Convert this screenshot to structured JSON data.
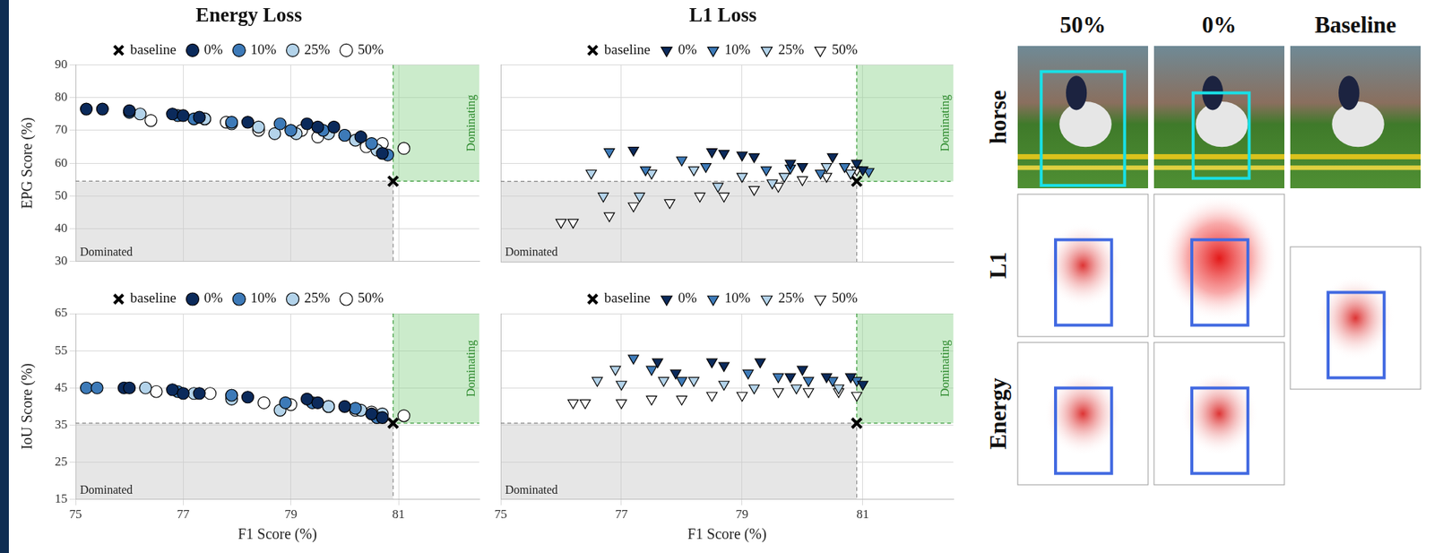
{
  "chart_data": [
    {
      "type": "scatter",
      "title": "Energy Loss",
      "y_label": "EPG Score (%)",
      "xlim": [
        75,
        82.5
      ],
      "ylim": [
        30,
        90
      ],
      "xticks": [
        75,
        77,
        79,
        81
      ],
      "yticks": [
        30,
        40,
        50,
        60,
        70,
        80,
        90
      ],
      "grid": true,
      "legend": "top",
      "tick_labels": "y",
      "annotations": {
        "below_left": "Dominated",
        "above_right": "Dominating"
      },
      "series": [
        {
          "name": "baseline",
          "color": "#ffffff",
          "marker": "x",
          "x": [
            80.9
          ],
          "values": [
            54.5
          ]
        },
        {
          "name": "0%",
          "color": "#0b2a5b",
          "marker": "circle",
          "x": [
            75.2,
            75.5,
            76.0,
            76.8,
            77.0,
            77.3,
            78.2,
            79.3,
            79.5,
            79.8,
            80.3,
            80.7
          ],
          "values": [
            76.5,
            76.5,
            76,
            75,
            74.5,
            74,
            72.5,
            72,
            71,
            71,
            68,
            63
          ]
        },
        {
          "name": "10%",
          "color": "#3d7ab8",
          "marker": "circle",
          "x": [
            76.0,
            76.9,
            77.2,
            77.9,
            78.8,
            79.0,
            79.6,
            80.0,
            80.5,
            80.8
          ],
          "values": [
            75.5,
            74.5,
            73.5,
            72.5,
            72,
            70,
            70,
            68.5,
            66,
            62.5
          ]
        },
        {
          "name": "25%",
          "color": "#b3d3ea",
          "marker": "circle",
          "x": [
            76.2,
            77.4,
            77.9,
            78.4,
            78.7,
            79.1,
            79.7,
            80.2,
            80.6
          ],
          "values": [
            75,
            73.5,
            72,
            71,
            69,
            69,
            69,
            67,
            64
          ]
        },
        {
          "name": "50%",
          "color": "#ffffff",
          "marker": "circle",
          "x": [
            76.4,
            77.4,
            77.8,
            78.4,
            79.2,
            79.5,
            80.0,
            80.4,
            80.7,
            81.1
          ],
          "values": [
            73,
            73.5,
            72.5,
            70,
            70,
            68,
            68.5,
            65,
            66,
            64.5
          ]
        }
      ]
    },
    {
      "type": "scatter",
      "title": "L1 Loss",
      "xlim": [
        75,
        82.5
      ],
      "ylim": [
        30,
        90
      ],
      "xticks": [
        75,
        77,
        79,
        81
      ],
      "yticks": [
        30,
        40,
        50,
        60,
        70,
        80,
        90
      ],
      "grid": true,
      "legend": "top",
      "tick_labels": false,
      "annotations": {
        "below_left": "Dominated",
        "above_right": "Dominating"
      },
      "series": [
        {
          "name": "baseline",
          "color": "#ffffff",
          "marker": "x",
          "x": [
            80.9
          ],
          "values": [
            54.5
          ]
        },
        {
          "name": "0%",
          "color": "#0b2a5b",
          "marker": "triangle_down",
          "x": [
            77.2,
            78.5,
            78.7,
            79.0,
            79.2,
            79.8,
            80.0,
            80.5,
            80.9,
            81.0
          ],
          "values": [
            64,
            63.5,
            63,
            62.5,
            62,
            60,
            59,
            62,
            60,
            58
          ]
        },
        {
          "name": "10%",
          "color": "#3d7ab8",
          "marker": "triangle_down",
          "x": [
            76.8,
            77.4,
            78.0,
            78.4,
            79.4,
            79.8,
            80.3,
            80.7,
            81.1
          ],
          "values": [
            63.5,
            58,
            61,
            59,
            58,
            58.5,
            57,
            59,
            57.5
          ]
        },
        {
          "name": "25%",
          "color": "#b3d3ea",
          "marker": "triangle_down",
          "x": [
            76.5,
            77.5,
            78.2,
            79.0,
            79.7,
            80.4,
            80.8,
            76.7,
            77.3,
            78.6,
            79.5
          ],
          "values": [
            57,
            57,
            58,
            56,
            56,
            59,
            57,
            50,
            50,
            53,
            54
          ]
        },
        {
          "name": "50%",
          "color": "#ffffff",
          "marker": "triangle_down",
          "x": [
            76.0,
            76.2,
            76.8,
            77.2,
            77.8,
            78.3,
            78.7,
            79.2,
            79.6,
            80.0,
            80.4,
            80.8,
            80.9
          ],
          "values": [
            42,
            42,
            44,
            47,
            48,
            50,
            50,
            52,
            53,
            55,
            56,
            57,
            58
          ]
        }
      ]
    },
    {
      "type": "scatter",
      "y_label": "IoU Score (%)",
      "x_label": "F1 Score (%)",
      "xlim": [
        75,
        82.5
      ],
      "ylim": [
        15,
        65
      ],
      "xticks": [
        75,
        77,
        79,
        81
      ],
      "yticks": [
        15,
        25,
        35,
        45,
        55,
        65
      ],
      "grid": true,
      "legend": "top",
      "annotations": {
        "below_left": "Dominated",
        "above_right": "Dominating"
      },
      "series": [
        {
          "name": "baseline",
          "color": "#ffffff",
          "marker": "x",
          "x": [
            80.9
          ],
          "values": [
            35.5
          ]
        },
        {
          "name": "0%",
          "color": "#0b2a5b",
          "marker": "circle",
          "x": [
            75.9,
            76.0,
            76.8,
            77.0,
            77.3,
            78.2,
            79.3,
            79.5,
            80.0,
            80.5,
            80.7
          ],
          "values": [
            45,
            45,
            44.5,
            43.5,
            43.5,
            42.5,
            42,
            41,
            40,
            38,
            37
          ]
        },
        {
          "name": "10%",
          "color": "#3d7ab8",
          "marker": "circle",
          "x": [
            75.2,
            75.4,
            76.9,
            77.9,
            78.9,
            79.4,
            80.2,
            80.6
          ],
          "values": [
            45,
            45,
            44,
            43,
            41,
            41,
            39.5,
            37
          ]
        },
        {
          "name": "25%",
          "color": "#b3d3ea",
          "marker": "circle",
          "x": [
            76.3,
            77.2,
            77.9,
            78.8,
            79.7,
            80.3,
            80.7
          ],
          "values": [
            45,
            43.5,
            42,
            39,
            40,
            39,
            38
          ]
        },
        {
          "name": "50%",
          "color": "#ffffff",
          "marker": "circle",
          "x": [
            76.5,
            77.5,
            77.9,
            78.5,
            79.0,
            79.7,
            80.2,
            80.5,
            81.1
          ],
          "values": [
            44,
            43.5,
            43,
            41,
            40.5,
            40,
            39,
            38.5,
            37.5
          ]
        }
      ]
    },
    {
      "type": "scatter",
      "x_label": "F1 Score (%)",
      "xlim": [
        75,
        82.5
      ],
      "ylim": [
        15,
        65
      ],
      "xticks": [
        75,
        77,
        79,
        81
      ],
      "yticks": [
        15,
        25,
        35,
        45,
        55,
        65
      ],
      "grid": true,
      "legend": "top",
      "tick_labels": "x",
      "annotations": {
        "below_left": "Dominated",
        "above_right": "Dominating"
      },
      "series": [
        {
          "name": "baseline",
          "color": "#ffffff",
          "marker": "x",
          "x": [
            80.9
          ],
          "values": [
            35.5
          ]
        },
        {
          "name": "0%",
          "color": "#0b2a5b",
          "marker": "triangle_down",
          "x": [
            77.6,
            77.9,
            78.5,
            78.7,
            79.3,
            79.8,
            80.0,
            80.4,
            80.8,
            81.0
          ],
          "values": [
            52,
            49,
            52,
            51,
            52,
            48,
            50,
            48,
            48,
            46
          ]
        },
        {
          "name": "10%",
          "color": "#3d7ab8",
          "marker": "triangle_down",
          "x": [
            77.2,
            77.5,
            78.0,
            79.1,
            79.6,
            80.1,
            80.5,
            80.9
          ],
          "values": [
            53,
            50,
            47,
            49,
            48,
            47,
            47,
            47
          ]
        },
        {
          "name": "25%",
          "color": "#b3d3ea",
          "marker": "triangle_down",
          "x": [
            76.6,
            77.0,
            77.7,
            78.2,
            78.7,
            79.2,
            79.9,
            80.6,
            76.9
          ],
          "values": [
            47,
            46,
            47,
            47,
            46,
            45,
            45,
            45,
            50
          ]
        },
        {
          "name": "50%",
          "color": "#ffffff",
          "marker": "triangle_down",
          "x": [
            76.2,
            76.4,
            77.0,
            77.5,
            78.0,
            78.5,
            79.0,
            79.6,
            80.1,
            80.6,
            80.9
          ],
          "values": [
            41,
            41,
            41,
            42,
            42,
            43,
            43,
            44,
            44,
            44,
            43
          ]
        }
      ]
    }
  ],
  "image_grid": {
    "columns": [
      "50%",
      "0%",
      "Baseline"
    ],
    "rows": [
      "horse",
      "L1",
      "Energy"
    ]
  }
}
